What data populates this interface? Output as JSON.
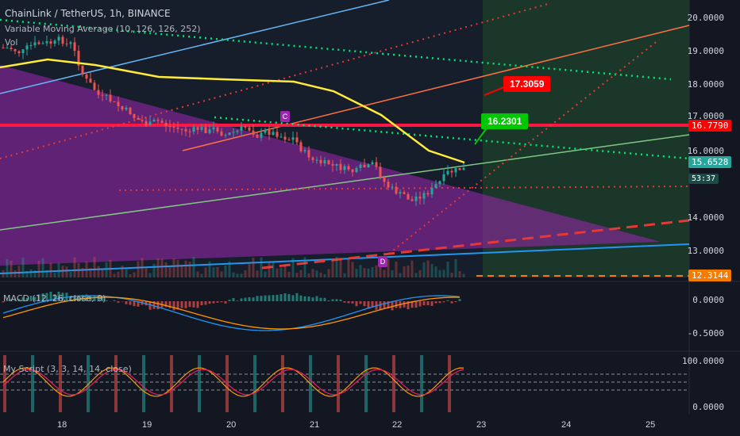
{
  "header": {
    "symbol": "ChainLink / TetherUS, 1h, BINANCE",
    "indicator": "Variable Moving Average (10, 126, 126, 252)",
    "volume": "Vol"
  },
  "panes": {
    "macd_label": "MACD (12, 26, close, 9)",
    "script_label": "My Script (3, 3, 14, 14, close)"
  },
  "price_axis": [
    "20.0000",
    "19.0000",
    "18.0000",
    "17.0000",
    "16.0000",
    "14.0000",
    "13.0000"
  ],
  "badges": {
    "red_line": "16.7790",
    "last_price": "15.6528",
    "countdown": "53:37",
    "bottom": "12.3144"
  },
  "macd_axis": [
    "0.0000",
    "-0.5000"
  ],
  "script_axis": [
    "100.0000",
    "0.0000"
  ],
  "time_axis": [
    "18",
    "19",
    "20",
    "21",
    "22",
    "23",
    "24",
    "25"
  ],
  "callouts": {
    "target_high": "17.3059",
    "target_mid": "16.2301"
  },
  "markers": {
    "c": "C",
    "d": "D"
  },
  "colors": {
    "bg": "#131722",
    "up": "#26a69a",
    "down": "#ef5350",
    "vma": "#ffeb3b",
    "callout_red": "#ff0000",
    "callout_green": "#00c800",
    "triangle": "#9c27b0"
  }
}
